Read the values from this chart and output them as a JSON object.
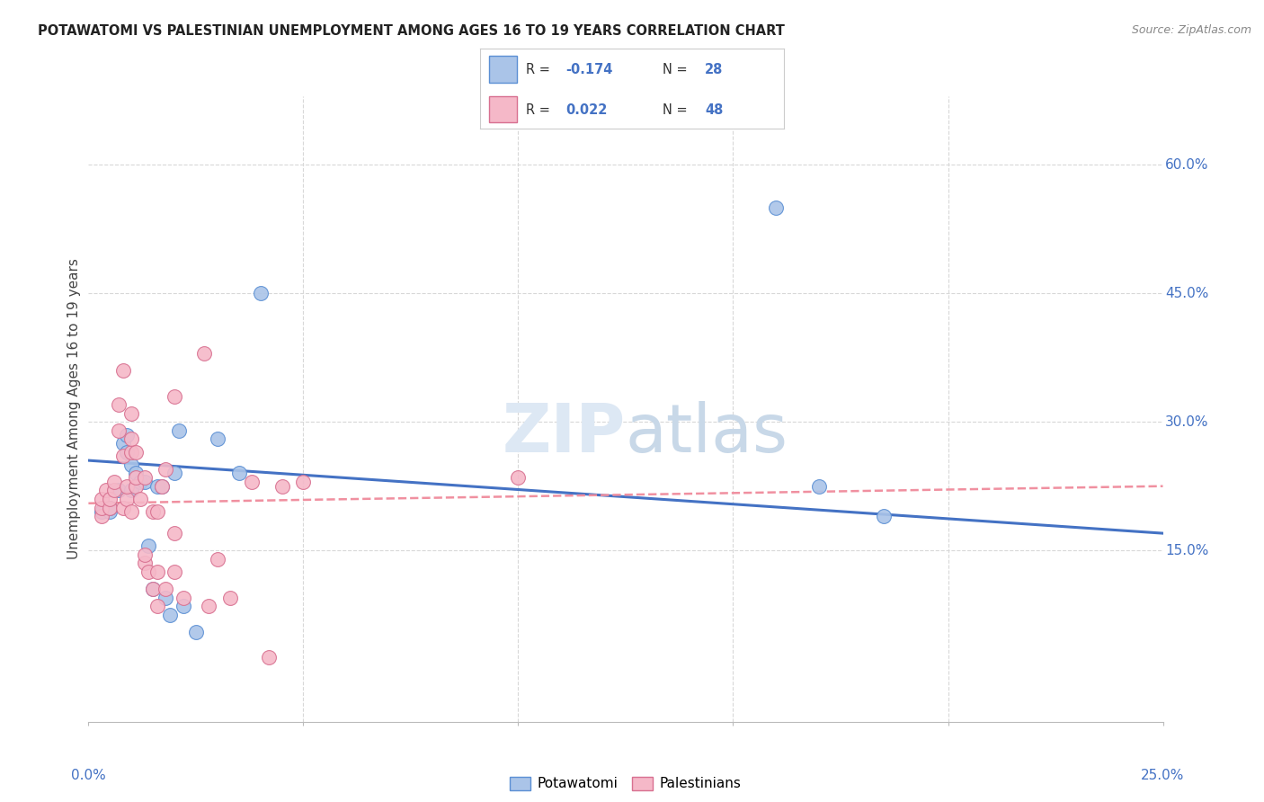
{
  "title": "POTAWATOMI VS PALESTINIAN UNEMPLOYMENT AMONG AGES 16 TO 19 YEARS CORRELATION CHART",
  "source": "Source: ZipAtlas.com",
  "ylabel": "Unemployment Among Ages 16 to 19 years",
  "right_yticks": [
    0.15,
    0.3,
    0.45,
    0.6
  ],
  "right_ytick_labels": [
    "15.0%",
    "30.0%",
    "45.0%",
    "60.0%"
  ],
  "potawatomi_color": "#aac4e8",
  "potawatomi_edge": "#5b8fd4",
  "palestinian_color": "#f5b8c8",
  "palestinian_edge": "#d87090",
  "trendline_blue": "#4472c4",
  "trendline_pink": "#f090a0",
  "watermark_color": "#dde8f4",
  "xlim": [
    0.0,
    0.25
  ],
  "ylim": [
    -0.05,
    0.68
  ],
  "potawatomi_x": [
    0.003,
    0.005,
    0.005,
    0.007,
    0.008,
    0.009,
    0.009,
    0.01,
    0.01,
    0.011,
    0.012,
    0.013,
    0.014,
    0.015,
    0.016,
    0.017,
    0.018,
    0.019,
    0.02,
    0.021,
    0.022,
    0.025,
    0.03,
    0.035,
    0.04,
    0.16,
    0.17,
    0.185
  ],
  "potawatomi_y": [
    0.195,
    0.195,
    0.2,
    0.22,
    0.275,
    0.265,
    0.285,
    0.25,
    0.22,
    0.24,
    0.23,
    0.23,
    0.155,
    0.105,
    0.225,
    0.225,
    0.095,
    0.075,
    0.24,
    0.29,
    0.085,
    0.055,
    0.28,
    0.24,
    0.45,
    0.55,
    0.225,
    0.19
  ],
  "palestinian_x": [
    0.003,
    0.003,
    0.003,
    0.004,
    0.005,
    0.005,
    0.006,
    0.006,
    0.007,
    0.007,
    0.008,
    0.008,
    0.008,
    0.009,
    0.009,
    0.01,
    0.01,
    0.01,
    0.01,
    0.011,
    0.011,
    0.011,
    0.012,
    0.013,
    0.013,
    0.013,
    0.014,
    0.015,
    0.015,
    0.016,
    0.016,
    0.016,
    0.017,
    0.018,
    0.018,
    0.02,
    0.02,
    0.02,
    0.022,
    0.027,
    0.028,
    0.03,
    0.033,
    0.038,
    0.042,
    0.045,
    0.05,
    0.1
  ],
  "palestinian_y": [
    0.19,
    0.2,
    0.21,
    0.22,
    0.2,
    0.21,
    0.22,
    0.23,
    0.29,
    0.32,
    0.26,
    0.36,
    0.2,
    0.21,
    0.225,
    0.265,
    0.28,
    0.31,
    0.195,
    0.225,
    0.235,
    0.265,
    0.21,
    0.235,
    0.135,
    0.145,
    0.125,
    0.105,
    0.195,
    0.085,
    0.125,
    0.195,
    0.225,
    0.245,
    0.105,
    0.17,
    0.33,
    0.125,
    0.095,
    0.38,
    0.085,
    0.14,
    0.095,
    0.23,
    0.025,
    0.225,
    0.23,
    0.235
  ],
  "trend_pot_y0": 0.255,
  "trend_pot_y1": 0.17,
  "trend_pal_y0": 0.205,
  "trend_pal_y1": 0.225,
  "grid_color": "#d8d8d8",
  "spine_color": "#bbbbbb",
  "tick_color": "#4472c4",
  "title_color": "#222222",
  "source_color": "#888888",
  "ylabel_color": "#444444"
}
